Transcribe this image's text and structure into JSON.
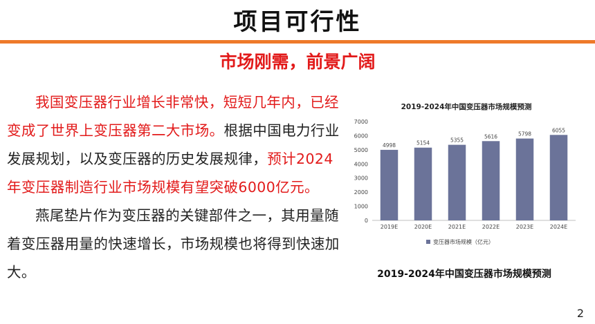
{
  "slide": {
    "title": "项目可行性",
    "subtitle": "市场刚需，前景广阔",
    "paragraph1": {
      "red_lead": "我国变压器行业增长非常快，短短几年内，已经变成了世界上变压器第二大市场。",
      "normal_mid": "根据中国电力行业发展规划，以及变压器的历史发展规律，",
      "red_tail": "预计2024年变压器制造行业市场规模有望突破6000亿元。"
    },
    "paragraph2": "燕尾垫片作为变压器的关键部件之一，其用量随着变压器用量的快速增长，市场规模也将得到快速加大。",
    "chart_caption": "2019-2024年中国变压器市场规模预测",
    "page_number": "2"
  },
  "colors": {
    "accent_orange": "#ee7a2a",
    "highlight_red": "#e21a1a",
    "bar_color": "#6b7399"
  },
  "chart_data": {
    "type": "bar",
    "title": "2019-2024年中国变压器市场规模预测",
    "categories": [
      "2019E",
      "2020E",
      "2021E",
      "2022E",
      "2023E",
      "2024E"
    ],
    "series": [
      {
        "name": "变压器市场规模（亿元）",
        "values": [
          4998,
          5154,
          5355,
          5616,
          5798,
          6055
        ]
      }
    ],
    "data_labels": [
      "4998",
      "5154",
      "5355",
      "5616",
      "5798",
      "6055"
    ],
    "yticks": [
      "0",
      "1000",
      "2000",
      "3000",
      "4000",
      "5000",
      "6000",
      "7000"
    ],
    "ylim": [
      0,
      7000
    ],
    "grid": false,
    "legend_position": "bottom"
  }
}
